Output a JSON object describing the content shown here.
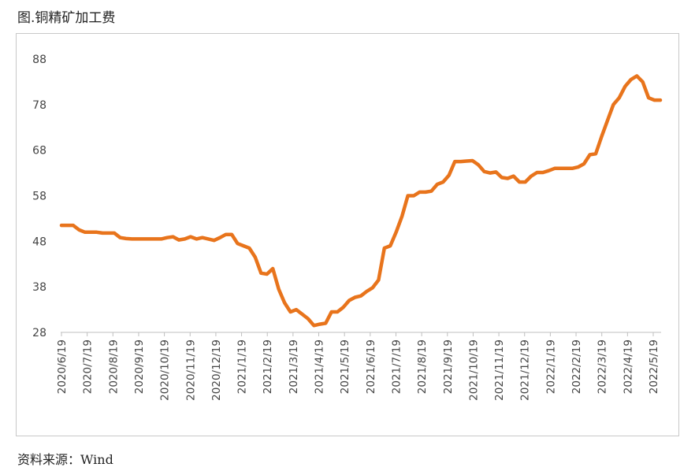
{
  "title": "图.铜精矿加工费",
  "source": "资料来源：Wind",
  "colors": {
    "line": "#E8741C",
    "axis": "#bfbfbf"
  },
  "chart_data": {
    "type": "line",
    "title": "图.铜精矿加工费",
    "xlabel": "",
    "ylabel": "",
    "ylim": [
      28,
      88
    ],
    "yticks": [
      28,
      38,
      48,
      58,
      68,
      78,
      88
    ],
    "grid": false,
    "legend": "none",
    "xticks": [
      "2020/6/19",
      "2020/7/19",
      "2020/8/19",
      "2020/9/19",
      "2020/10/19",
      "2020/11/19",
      "2020/12/19",
      "2021/1/19",
      "2021/2/19",
      "2021/3/19",
      "2021/4/19",
      "2021/5/19",
      "2021/6/19",
      "2021/7/19",
      "2021/8/19",
      "2021/9/19",
      "2021/10/19",
      "2021/11/19",
      "2021/12/19",
      "2022/1/19",
      "2022/2/19",
      "2022/3/19",
      "2022/4/19",
      "2022/5/19"
    ],
    "series": [
      {
        "values": [
          51.5,
          51.5,
          51.5,
          50.5,
          50,
          50,
          50,
          49.8,
          49.8,
          49.8,
          48.8,
          48.6,
          48.5,
          48.5,
          48.5,
          48.5,
          48.5,
          48.5,
          48.8,
          49,
          48.3,
          48.5,
          49,
          48.5,
          48.8,
          48.5,
          48.2,
          48.8,
          49.5,
          49.5,
          47.5,
          47,
          46.5,
          44.5,
          41,
          40.8,
          42,
          37.5,
          34.5,
          32.5,
          33,
          32,
          31,
          29.5,
          29.8,
          30,
          32.5,
          32.5,
          33.5,
          35,
          35.7,
          36,
          37,
          37.8,
          39.5,
          46.5,
          47,
          50,
          53.5,
          58,
          58,
          58.8,
          58.8,
          59,
          60.5,
          61,
          62.5,
          65.5,
          65.5,
          65.6,
          65.7,
          64.8,
          63.3,
          63,
          63.2,
          62,
          61.8,
          62.3,
          61,
          61,
          62.3,
          63.1,
          63.1,
          63.5,
          64,
          64,
          64,
          64,
          64.3,
          65,
          67,
          67.2,
          71,
          74.5,
          78,
          79.5,
          82,
          83.5,
          84.3,
          83,
          79.5,
          79,
          79
        ]
      }
    ]
  }
}
